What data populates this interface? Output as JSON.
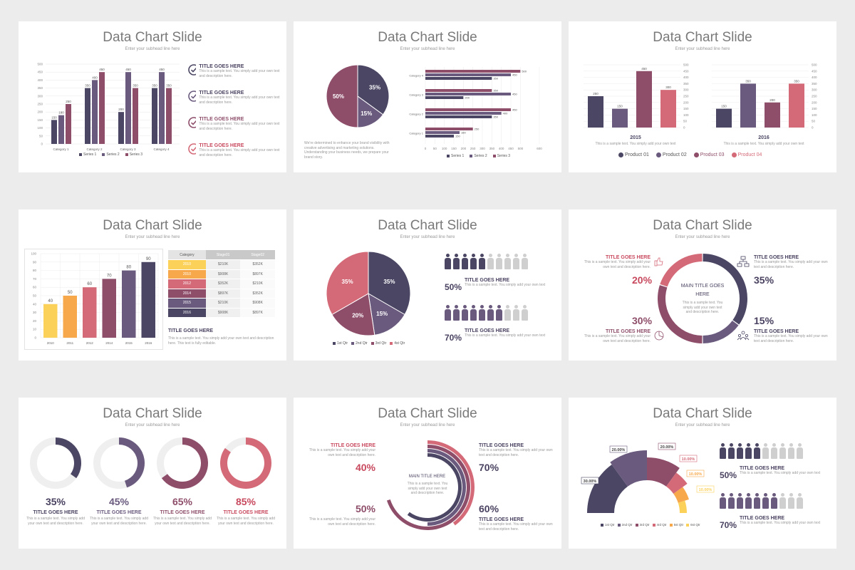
{
  "colors": {
    "navy": "#4a4663",
    "purple": "#6a5a7e",
    "plum": "#8e4e6a",
    "rose": "#d46a78",
    "orange": "#f7a84b",
    "yellow": "#fcd15a",
    "gray": "#cfcfcf"
  },
  "slides": [
    {
      "title": "Data Chart Slide",
      "subtitle": "Enter your subhead line here"
    },
    {
      "title": "Data Chart Slide",
      "subtitle": "Enter your subhead line here"
    },
    {
      "title": "Data Chart Slide",
      "subtitle": "Enter your subhead line here"
    },
    {
      "title": "Data Chart Slide",
      "subtitle": "Enter your subhead line here"
    },
    {
      "title": "Data Chart Slide",
      "subtitle": "Enter your subhead line here"
    },
    {
      "title": "Data Chart Slide",
      "subtitle": "Enter your subhead line here"
    },
    {
      "title": "Data Chart Slide",
      "subtitle": "Enter your subhead line here"
    },
    {
      "title": "Data Chart Slide",
      "subtitle": "Enter your subhead line here"
    },
    {
      "title": "Data Chart Slide",
      "subtitle": "Enter your subhead line here"
    }
  ],
  "s1": {
    "items": [
      {
        "title": "TITLE GOES HERE",
        "text": "This is a sample text. You simply add your own text and description here."
      },
      {
        "title": "TITLE GOES HERE",
        "text": "This is a sample text. You simply add your own text and description here."
      },
      {
        "title": "TITLE GOES HERE",
        "text": "This is a sample text. You simply add your own text and description here."
      },
      {
        "title": "TITLE GOES HERE",
        "text": "This is a sample text. You simply add your own text and description here."
      }
    ],
    "legend": [
      "Series 1",
      "Series 2",
      "Series 3"
    ]
  },
  "s2": {
    "text": "We're determined to enhance your brand visibility with creative advertising and marketing solutions. Understanding your business needs, we prepare your brand story.",
    "legend": [
      "Series 1",
      "Series 2",
      "Series 3"
    ]
  },
  "s3": {
    "labels": [
      "2015",
      "2016"
    ],
    "captions": [
      "This is a sample text. You simply add your own text",
      "This is a sample text. You simply add your own text"
    ],
    "legend": [
      "Product 01",
      "Product 02",
      "Product 03",
      "Product 04"
    ]
  },
  "s4": {
    "table_headers": [
      "Category",
      "Stage01",
      "Stage02"
    ],
    "table_rows": [
      [
        "2010",
        "$210K",
        "$352K"
      ],
      [
        "2010",
        "$908K",
        "$897K"
      ],
      [
        "2012",
        "$352K",
        "$210K"
      ],
      [
        "2014",
        "$897K",
        "$352K"
      ],
      [
        "2015",
        "$210K",
        "$908K"
      ],
      [
        "2016",
        "$908K",
        "$897K"
      ]
    ],
    "title": "TITLE GOES HERE",
    "text": "This is a sample text. You simply add your own text and description here. This text is fully editable."
  },
  "s5": {
    "legend": [
      "1st Qtr",
      "2nd Qtr",
      "3rd Qtr",
      "4st Qtr"
    ],
    "blocks": [
      {
        "pct": "50%",
        "title": "TITLE GOES HERE",
        "text": "This is a sample text. You simply add your own text"
      },
      {
        "pct": "70%",
        "title": "TITLE GOES HERE",
        "text": "This is a sample text. You simply add your own text"
      }
    ]
  },
  "s6": {
    "center_title": "MAIN TITLE GOES HERE",
    "center_text": "This is a sample text. You simply add your own text and description here.",
    "blocks": [
      {
        "pct": "20%",
        "title": "TITLE GOES HERE",
        "text": "This is a sample text. You simply add your own text and description here."
      },
      {
        "pct": "35%",
        "title": "TITLE GOES HERE",
        "text": "This is a sample text. You simply add your own text and description here."
      },
      {
        "pct": "30%",
        "title": "TITLE GOES HERE",
        "text": "This is a sample text. You simply add your own text and description here."
      },
      {
        "pct": "15%",
        "title": "TITLE GOES HERE",
        "text": "This is a sample text. You simply add your own text and description here."
      }
    ]
  },
  "s7": {
    "items": [
      {
        "pct": "35%",
        "title": "TITLE GOES HERE",
        "text": "This is a sample text. You simply add your own text and description here."
      },
      {
        "pct": "45%",
        "title": "TITLE GOES HERE",
        "text": "This is a sample text. You simply add your own text and description here."
      },
      {
        "pct": "65%",
        "title": "TITLE GOES HERE",
        "text": "This is a sample text. You simply add your own text and description here."
      },
      {
        "pct": "85%",
        "title": "TITLE GOES HERE",
        "text": "This is a sample text. You simply add your own text and description here."
      }
    ]
  },
  "s8": {
    "center_title": "MAIN TITLE HERE",
    "center_text": "This is a sample text. You simply add your own text and description here.",
    "blocks": [
      {
        "pct": "40%",
        "title": "TITLE GOES HERE",
        "text": "This is a sample text. You simply add your own text and description here."
      },
      {
        "pct": "70%",
        "title": "TITLE GOES HERE",
        "text": "This is a sample text. You simply add your own text and description here."
      },
      {
        "pct": "50%",
        "title": "",
        "text": "This is a sample text. You simply add your own text and description here."
      },
      {
        "pct": "60%",
        "title": "TITLE GOES HERE",
        "text": "This is a sample text. You simply add your own text and description here."
      }
    ]
  },
  "s9": {
    "labels": [
      "30.00%",
      "20.00%",
      "20.00%",
      "10.00%",
      "10.00%",
      "10.00%"
    ],
    "legend": [
      "1st Qtr",
      "2nd Qtr",
      "3rd Qtr",
      "4rd Qtr",
      "5st Qtr",
      "6st Qtr"
    ],
    "blocks": [
      {
        "pct": "50%",
        "title": "TITLE GOES HERE",
        "text": "This is a sample text. You simply add your own text"
      },
      {
        "pct": "70%",
        "title": "TITLE GOES HERE",
        "text": "This is a sample text. You simply add your own text"
      }
    ]
  },
  "chart_data": [
    {
      "type": "bar",
      "categories": [
        "Category 1",
        "Category 2",
        "Category 3",
        "Category 4"
      ],
      "series": [
        {
          "name": "Series 1",
          "values": [
            150,
            350,
            200,
            350
          ]
        },
        {
          "name": "Series 2",
          "values": [
            180,
            400,
            450,
            450
          ]
        },
        {
          "name": "Series 3",
          "values": [
            250,
            450,
            350,
            350
          ]
        }
      ],
      "ylim": [
        0,
        500
      ],
      "yticks": [
        0,
        50,
        100,
        150,
        200,
        250,
        300,
        350,
        400,
        450,
        500
      ]
    },
    {
      "type": "pie",
      "values": [
        35,
        15,
        50
      ],
      "labels": [
        "35%",
        "15%",
        "50%"
      ]
    },
    {
      "type": "bar",
      "orientation": "horizontal",
      "categories": [
        "Category 4",
        "Category 3",
        "Category 2",
        "Category 1"
      ],
      "series": [
        {
          "name": "Series 1",
          "values": [
            350,
            200,
            350,
            150
          ]
        },
        {
          "name": "Series 2",
          "values": [
            450,
            450,
            400,
            180
          ]
        },
        {
          "name": "Series 3",
          "values": [
            500,
            350,
            450,
            250
          ]
        }
      ],
      "xlim": [
        0,
        600
      ],
      "xticks": [
        0,
        50,
        100,
        150,
        200,
        250,
        300,
        350,
        400,
        450,
        500,
        600
      ]
    },
    {
      "type": "bar",
      "title": "2015",
      "categories": [
        "Product 01",
        "Product 02",
        "Product 03",
        "Product 04"
      ],
      "values": [
        250,
        150,
        450,
        300
      ],
      "ylim": [
        0,
        500
      ],
      "yticks": [
        0,
        50,
        100,
        150,
        200,
        250,
        300,
        350,
        400,
        450,
        500
      ]
    },
    {
      "type": "bar",
      "title": "2016",
      "categories": [
        "Product 01",
        "Product 02",
        "Product 03",
        "Product 04"
      ],
      "values": [
        150,
        350,
        200,
        350
      ],
      "ylim": [
        0,
        500
      ],
      "yticks": [
        0,
        50,
        100,
        150,
        200,
        250,
        300,
        350,
        400,
        450,
        500
      ]
    },
    {
      "type": "bar",
      "categories": [
        "2010",
        "2011",
        "2012",
        "2014",
        "2015",
        "2016"
      ],
      "values": [
        40,
        50,
        60,
        70,
        80,
        90
      ],
      "ylim": [
        0,
        100
      ],
      "yticks": [
        0,
        10,
        20,
        30,
        40,
        50,
        60,
        70,
        80,
        90,
        100
      ]
    },
    {
      "type": "pie",
      "categories": [
        "1st Qtr",
        "2nd Qtr",
        "3rd Qtr",
        "4st Qtr"
      ],
      "values": [
        35,
        15,
        20,
        35
      ],
      "labels": [
        "35%",
        "15%",
        "20%",
        "35%"
      ]
    },
    {
      "type": "pie",
      "style": "donut",
      "values": [
        35,
        15,
        30,
        20
      ],
      "labels": [
        "35%",
        "15%",
        "30%",
        "20%"
      ]
    },
    {
      "type": "pie",
      "style": "donuts",
      "values": [
        35,
        45,
        65,
        85
      ]
    },
    {
      "type": "pie",
      "style": "radial",
      "values": [
        40,
        70,
        50,
        60
      ]
    },
    {
      "type": "pie",
      "style": "half-donut",
      "categories": [
        "1st Qtr",
        "2nd Qtr",
        "3rd Qtr",
        "4rd Qtr",
        "5st Qtr",
        "6st Qtr"
      ],
      "values": [
        30,
        20,
        20,
        10,
        10,
        10
      ]
    }
  ]
}
